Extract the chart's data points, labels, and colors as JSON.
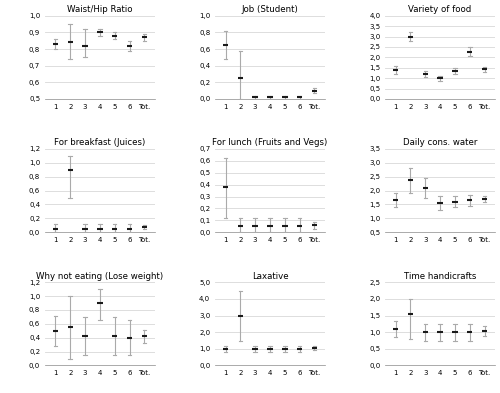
{
  "subplots": [
    {
      "title": "Waist/Hip Ratio",
      "ylim": [
        0.5,
        1.0
      ],
      "yticks": [
        0.5,
        0.6,
        0.7,
        0.8,
        0.9,
        1.0
      ],
      "ytick_fmt": "1",
      "means": [
        0.83,
        0.84,
        0.82,
        0.9,
        0.88,
        0.82,
        0.87
      ],
      "lows": [
        0.8,
        0.74,
        0.75,
        0.88,
        0.86,
        0.79,
        0.85
      ],
      "highs": [
        0.86,
        0.95,
        0.92,
        0.92,
        0.9,
        0.85,
        0.89
      ]
    },
    {
      "title": "Job (Student)",
      "ylim": [
        0.0,
        1.0
      ],
      "yticks": [
        0.0,
        0.2,
        0.4,
        0.6,
        0.8,
        1.0
      ],
      "ytick_fmt": "1",
      "means": [
        0.65,
        0.25,
        0.02,
        0.02,
        0.02,
        0.02,
        0.1
      ],
      "lows": [
        0.48,
        0.0,
        0.0,
        0.0,
        0.0,
        0.0,
        0.07
      ],
      "highs": [
        0.82,
        0.58,
        0.04,
        0.04,
        0.04,
        0.04,
        0.13
      ]
    },
    {
      "title": "Variety of food",
      "ylim": [
        0.0,
        4.0
      ],
      "yticks": [
        0.0,
        0.5,
        1.0,
        1.5,
        2.0,
        2.5,
        3.0,
        3.5,
        4.0
      ],
      "ytick_fmt": "1",
      "means": [
        1.4,
        3.0,
        1.2,
        1.0,
        1.35,
        2.28,
        1.42
      ],
      "lows": [
        1.2,
        2.78,
        1.05,
        0.88,
        1.2,
        2.05,
        1.3
      ],
      "highs": [
        1.6,
        3.22,
        1.35,
        1.12,
        1.5,
        2.5,
        1.54
      ]
    },
    {
      "title": "For breakfast (Juices)",
      "ylim": [
        0.0,
        1.2
      ],
      "yticks": [
        0.0,
        0.2,
        0.4,
        0.6,
        0.8,
        1.0,
        1.2
      ],
      "ytick_fmt": "1",
      "means": [
        0.05,
        0.9,
        0.05,
        0.05,
        0.05,
        0.05,
        0.07
      ],
      "lows": [
        0.0,
        0.5,
        0.0,
        0.0,
        0.0,
        0.0,
        0.04
      ],
      "highs": [
        0.12,
        1.1,
        0.12,
        0.12,
        0.12,
        0.12,
        0.1
      ]
    },
    {
      "title": "For lunch (Fruits and Vegs)",
      "ylim": [
        0.0,
        0.7
      ],
      "yticks": [
        0.0,
        0.1,
        0.2,
        0.3,
        0.4,
        0.5,
        0.6,
        0.7
      ],
      "ytick_fmt": "1",
      "means": [
        0.38,
        0.05,
        0.05,
        0.05,
        0.05,
        0.05,
        0.06
      ],
      "lows": [
        0.12,
        0.0,
        0.0,
        0.0,
        0.0,
        0.0,
        0.03
      ],
      "highs": [
        0.62,
        0.12,
        0.12,
        0.12,
        0.12,
        0.12,
        0.09
      ]
    },
    {
      "title": "Daily cons. water",
      "ylim": [
        0.5,
        3.5
      ],
      "yticks": [
        0.5,
        1.0,
        1.5,
        2.0,
        2.5,
        3.0,
        3.5
      ],
      "ytick_fmt": "1",
      "means": [
        1.65,
        2.4,
        2.1,
        1.55,
        1.6,
        1.65,
        1.7
      ],
      "lows": [
        1.4,
        1.9,
        1.75,
        1.3,
        1.4,
        1.45,
        1.58
      ],
      "highs": [
        1.9,
        2.8,
        2.45,
        1.8,
        1.8,
        1.85,
        1.82
      ]
    },
    {
      "title": "Why not eating (Lose weight)",
      "ylim": [
        0.0,
        1.2
      ],
      "yticks": [
        0.0,
        0.2,
        0.4,
        0.6,
        0.8,
        1.0,
        1.2
      ],
      "ytick_fmt": "1",
      "means": [
        0.5,
        0.55,
        0.42,
        0.9,
        0.42,
        0.4,
        0.42
      ],
      "lows": [
        0.28,
        0.1,
        0.15,
        0.65,
        0.15,
        0.15,
        0.33
      ],
      "highs": [
        0.72,
        1.0,
        0.7,
        1.1,
        0.7,
        0.65,
        0.51
      ]
    },
    {
      "title": "Laxative",
      "ylim": [
        0.0,
        5.0
      ],
      "yticks": [
        0.0,
        1.0,
        2.0,
        3.0,
        4.0,
        5.0
      ],
      "ytick_fmt": "1",
      "means": [
        1.0,
        3.0,
        1.0,
        1.0,
        1.0,
        1.0,
        1.05
      ],
      "lows": [
        0.8,
        1.5,
        0.8,
        0.8,
        0.8,
        0.8,
        0.9
      ],
      "highs": [
        1.2,
        4.5,
        1.2,
        1.2,
        1.2,
        1.2,
        1.2
      ]
    },
    {
      "title": "Time handicrafts",
      "ylim": [
        0.0,
        2.5
      ],
      "yticks": [
        0.0,
        0.5,
        1.0,
        1.5,
        2.0,
        2.5
      ],
      "ytick_fmt": "1",
      "means": [
        1.1,
        1.55,
        1.0,
        1.0,
        1.0,
        1.0,
        1.05
      ],
      "lows": [
        0.85,
        0.8,
        0.75,
        0.75,
        0.75,
        0.75,
        0.9
      ],
      "highs": [
        1.35,
        2.0,
        1.25,
        1.25,
        1.25,
        1.25,
        1.2
      ]
    }
  ],
  "x_labels": [
    "1",
    "2",
    "3",
    "4",
    "5",
    "6",
    "Tot."
  ],
  "marker_color": "#1a1a1a",
  "error_color": "#aaaaaa",
  "grid_color": "#d8d8d8",
  "bg_color": "#ffffff"
}
